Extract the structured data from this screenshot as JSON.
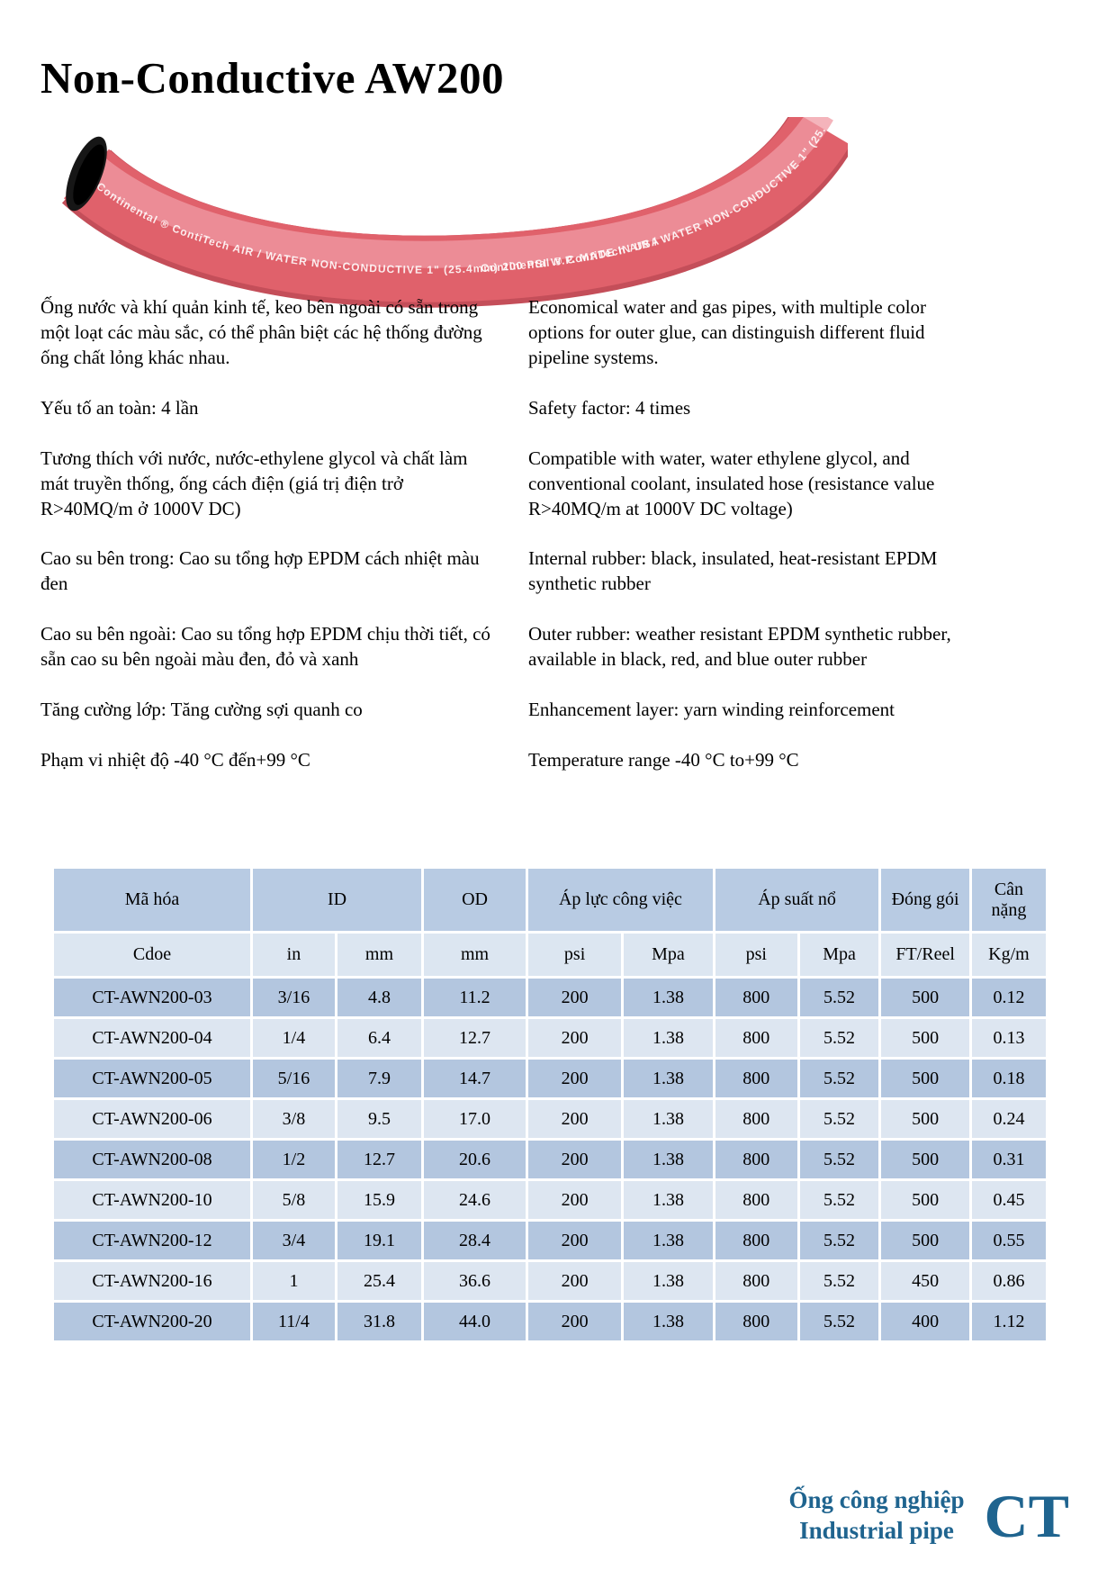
{
  "page": {
    "title": "Non-Conductive AW200"
  },
  "hose_image": {
    "description": "curved red rubber air/water hose with black open end",
    "print_text": "Continental ® ContiTech    AIR / WATER NON-CONDUCTIVE  1\" (25.4mm) 200 PSI W.P. MADE IN USA",
    "body_color": "#e0616b",
    "shade_color": "#c44e59",
    "highlight_color": "#f09ba4",
    "opening_color": "#161616"
  },
  "intro": {
    "vi": [
      "Ống nước và khí quản kinh tế, keo bên ngoài có sẵn trong một loạt các màu sắc, có thể phân biệt các hệ thống đường ống chất lỏng khác nhau.",
      "Yếu tố an toàn: 4 lần",
      "Tương thích với nước, nước-ethylene glycol và chất làm mát truyền thống, ống cách điện (giá trị điện trở R>40MQ/m ở 1000V DC)",
      "Cao su bên trong: Cao su tổng hợp EPDM cách nhiệt màu đen",
      "Cao su bên ngoài: Cao su tổng hợp EPDM chịu thời tiết, có sẵn cao su bên ngoài màu đen, đỏ và xanh",
      "Tăng cường lớp: Tăng cường sợi quanh co",
      "Phạm vi nhiệt độ -40 °C đến+99 °C"
    ],
    "en": [
      "Economical water and gas pipes, with multiple color options for outer glue, can distinguish different fluid pipeline systems.",
      "Safety factor: 4 times",
      "Compatible with water, water ethylene glycol, and conventional coolant, insulated hose (resistance value R>40MQ/m at 1000V DC voltage)",
      "Internal rubber: black, insulated, heat-resistant EPDM synthetic rubber",
      "Outer rubber: weather resistant EPDM synthetic rubber, available in black, red, and blue outer rubber",
      "Enhancement layer: yarn winding reinforcement",
      "Temperature range -40 °C to+99 °C"
    ]
  },
  "table": {
    "header_row1": [
      "Mã hóa",
      "ID",
      "OD",
      "Áp lực công việc",
      "Áp suất nổ",
      "Đóng gói",
      "Cân nặng"
    ],
    "header_row2": [
      "Cdoe",
      "in",
      "mm",
      "mm",
      "psi",
      "Mpa",
      "psi",
      "Mpa",
      "FT/Reel",
      "Kg/m"
    ],
    "rows": [
      [
        "CT-AWN200-03",
        "3/16",
        "4.8",
        "11.2",
        "200",
        "1.38",
        "800",
        "5.52",
        "500",
        "0.12"
      ],
      [
        "CT-AWN200-04",
        "1/4",
        "6.4",
        "12.7",
        "200",
        "1.38",
        "800",
        "5.52",
        "500",
        "0.13"
      ],
      [
        "CT-AWN200-05",
        "5/16",
        "7.9",
        "14.7",
        "200",
        "1.38",
        "800",
        "5.52",
        "500",
        "0.18"
      ],
      [
        "CT-AWN200-06",
        "3/8",
        "9.5",
        "17.0",
        "200",
        "1.38",
        "800",
        "5.52",
        "500",
        "0.24"
      ],
      [
        "CT-AWN200-08",
        "1/2",
        "12.7",
        "20.6",
        "200",
        "1.38",
        "800",
        "5.52",
        "500",
        "0.31"
      ],
      [
        "CT-AWN200-10",
        "5/8",
        "15.9",
        "24.6",
        "200",
        "1.38",
        "800",
        "5.52",
        "500",
        "0.45"
      ],
      [
        "CT-AWN200-12",
        "3/4",
        "19.1",
        "28.4",
        "200",
        "1.38",
        "800",
        "5.52",
        "500",
        "0.55"
      ],
      [
        "CT-AWN200-16",
        "1",
        "25.4",
        "36.6",
        "200",
        "1.38",
        "800",
        "5.52",
        "450",
        "0.86"
      ],
      [
        "CT-AWN200-20",
        "11/4",
        "31.8",
        "44.0",
        "200",
        "1.38",
        "800",
        "5.52",
        "400",
        "1.12"
      ]
    ],
    "colors": {
      "header_bg": "#b8cbe3",
      "subheader_bg": "#dce6f1",
      "row_odd_bg": "#b3c6df",
      "row_even_bg": "#dde6f1",
      "gridline": "#ffffff"
    }
  },
  "footer": {
    "line1": "Ống công nghiệp",
    "line2": "Industrial pipe",
    "logo": "CT",
    "accent_color": "#1f648f"
  }
}
